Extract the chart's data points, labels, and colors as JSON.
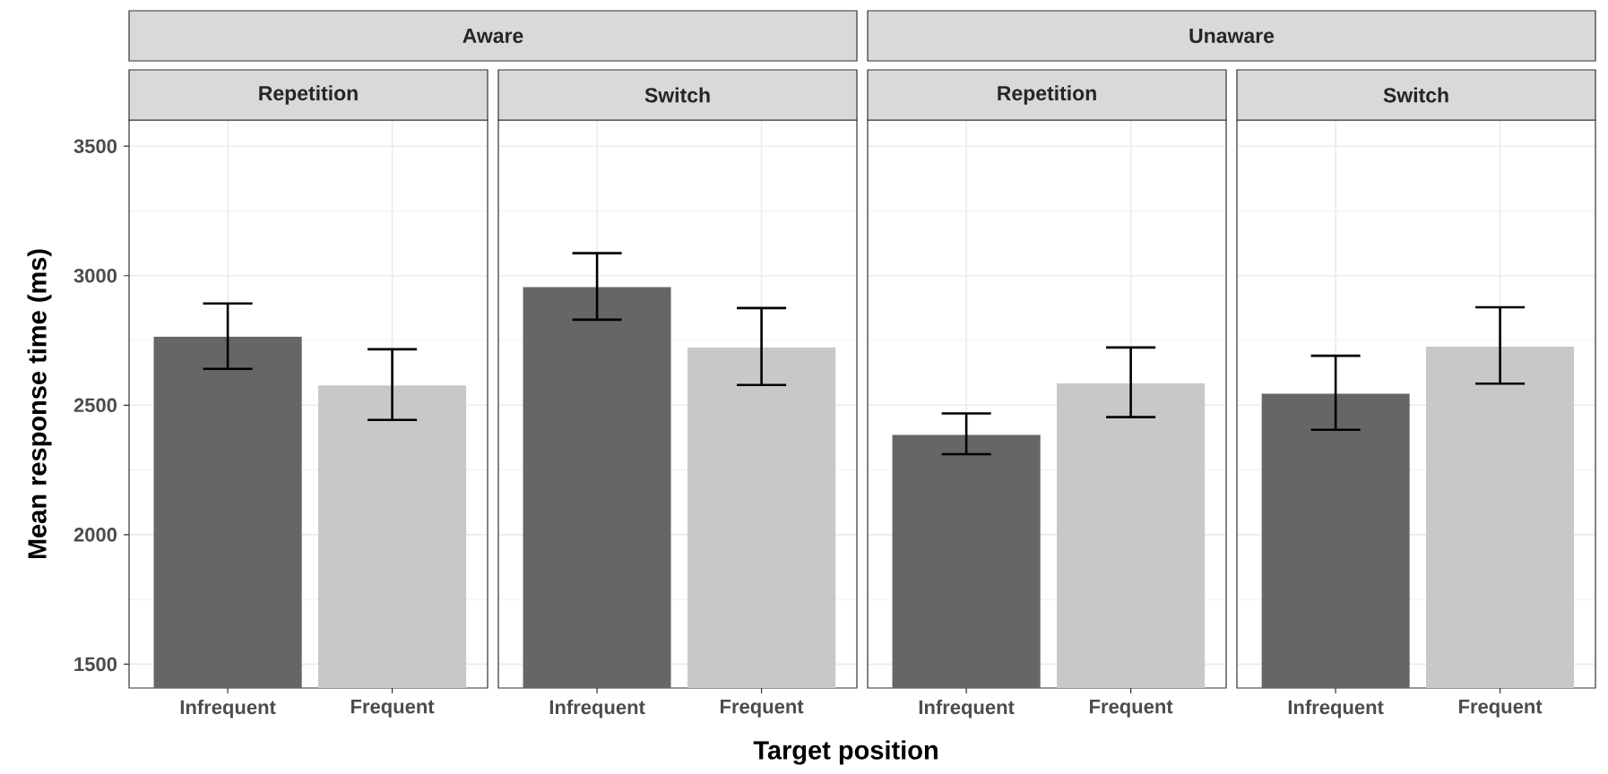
{
  "chart_data": [
    {
      "type": "bar",
      "title": "Aware",
      "subtitle": "Repetition",
      "ylabel": "Mean response time (ms)",
      "categories": [
        "Infrequent",
        "Frequent"
      ],
      "values": [
        2765,
        2576
      ],
      "colors": [
        "#666666",
        "#c8c8c8"
      ],
      "errors": [
        [
          2640,
          2893
        ],
        [
          2443,
          2716
        ]
      ],
      "ylim": [
        1408,
        3601
      ],
      "yticks": [
        1500,
        2000,
        2500,
        3000,
        3500
      ],
      "grid": true
    },
    {
      "type": "bar",
      "subtitle": "Switch",
      "xlabel": "Target position",
      "categories": [
        "Infrequent",
        "Frequent"
      ],
      "values": [
        2956,
        2723
      ],
      "colors": [
        "#666666",
        "#c8c8c8"
      ],
      "errors": [
        [
          2830,
          3087
        ],
        [
          2578,
          2875
        ]
      ],
      "ylim": [
        1408,
        3601
      ],
      "yticks": [
        1500,
        2000,
        2500,
        3000,
        3500
      ],
      "grid": true,
      "tick_labels": "x"
    },
    {
      "type": "bar",
      "title": "Unaware",
      "subtitle": "Repetition",
      "categories": [
        "Infrequent",
        "Frequent"
      ],
      "values": [
        2385,
        2585
      ],
      "colors": [
        "#666666",
        "#c8c8c8"
      ],
      "errors": [
        [
          2311,
          2468
        ],
        [
          2454,
          2723
        ]
      ],
      "ylim": [
        1408,
        3601
      ],
      "yticks": [
        1500,
        2000,
        2500,
        3000,
        3500
      ],
      "grid": true,
      "tick_labels": "x"
    },
    {
      "type": "bar",
      "subtitle": "Switch",
      "categories": [
        "Infrequent",
        "Frequent"
      ],
      "values": [
        2544,
        2726
      ],
      "colors": [
        "#666666",
        "#c8c8c8"
      ],
      "errors": [
        [
          2405,
          2691
        ],
        [
          2583,
          2878
        ]
      ],
      "ylim": [
        1408,
        3601
      ],
      "yticks": [
        1500,
        2000,
        2500,
        3000,
        3500
      ],
      "grid": true,
      "tick_labels": "x"
    }
  ]
}
